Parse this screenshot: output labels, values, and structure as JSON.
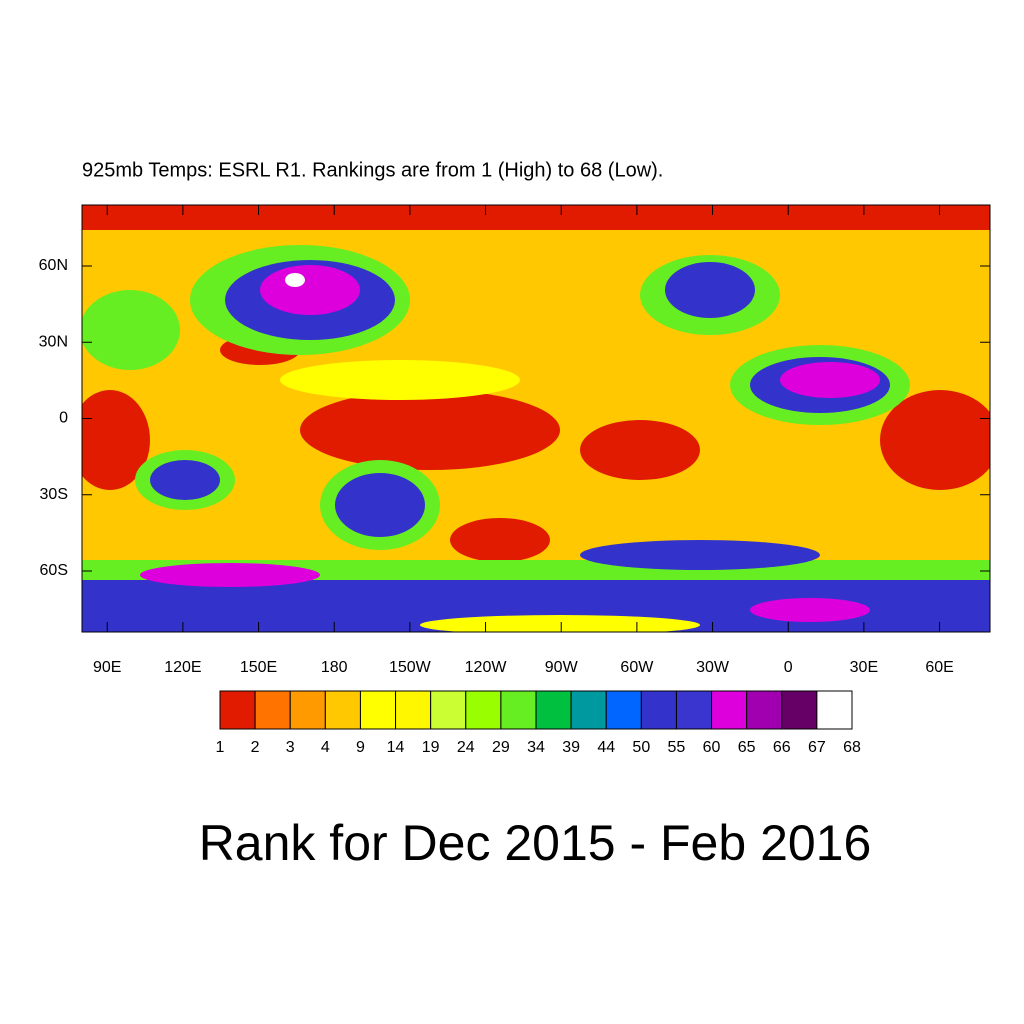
{
  "chart_data": {
    "type": "map",
    "title": "Rank for Dec 2015 - Feb 2016",
    "subtitle": "925mb Temps: ESRL R1. Rankings are from 1 (High) to 68 (Low).",
    "xlim": [
      80,
      440
    ],
    "ylim": [
      -84,
      84
    ],
    "xticks": [
      {
        "value": 90,
        "label": "90E"
      },
      {
        "value": 120,
        "label": "120E"
      },
      {
        "value": 150,
        "label": "150E"
      },
      {
        "value": 180,
        "label": "180"
      },
      {
        "value": 210,
        "label": "150W"
      },
      {
        "value": 240,
        "label": "120W"
      },
      {
        "value": 270,
        "label": "90W"
      },
      {
        "value": 300,
        "label": "60W"
      },
      {
        "value": 330,
        "label": "30W"
      },
      {
        "value": 360,
        "label": "0"
      },
      {
        "value": 390,
        "label": "30E"
      },
      {
        "value": 420,
        "label": "60E"
      }
    ],
    "yticks": [
      {
        "value": 60,
        "label": "60N"
      },
      {
        "value": 30,
        "label": "30N"
      },
      {
        "value": 0,
        "label": "0"
      },
      {
        "value": -30,
        "label": "30S"
      },
      {
        "value": -60,
        "label": "60S"
      }
    ],
    "colorbar": {
      "levels": [
        1,
        2,
        3,
        4,
        9,
        14,
        19,
        24,
        29,
        34,
        39,
        44,
        50,
        55,
        60,
        65,
        66,
        67,
        68
      ],
      "colors": [
        "#e01b00",
        "#ff7300",
        "#ff9a00",
        "#ffc800",
        "#ffff00",
        "#fff700",
        "#ccff33",
        "#99ff00",
        "#66ee22",
        "#00c040",
        "#00999f",
        "#0066ff",
        "#3333cc",
        "#3a35cf",
        "#dd00dd",
        "#a000b0",
        "#660066",
        "#ffffff"
      ]
    }
  }
}
